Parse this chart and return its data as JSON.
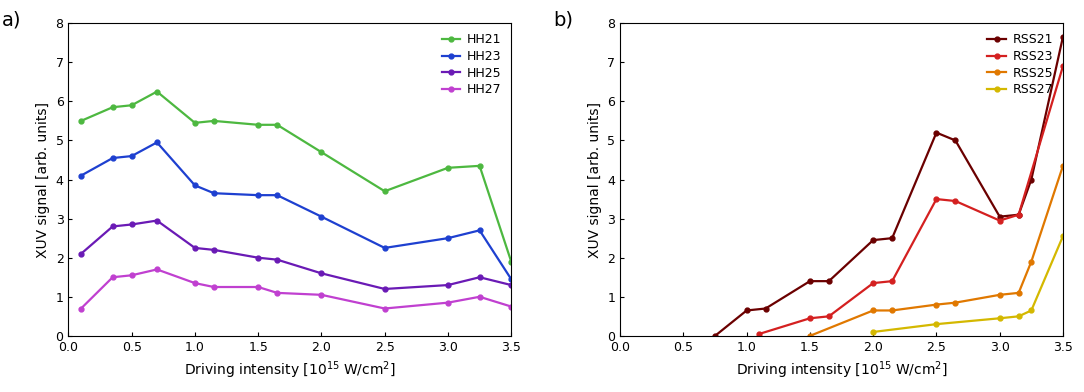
{
  "panel_a": {
    "title_label": "a)",
    "series": [
      {
        "label": "HH21",
        "color": "#4db840",
        "x": [
          0.1,
          0.35,
          0.5,
          0.7,
          1.0,
          1.15,
          1.5,
          1.65,
          2.0,
          2.5,
          3.0,
          3.25,
          3.5
        ],
        "y": [
          5.5,
          5.85,
          5.9,
          6.25,
          5.45,
          5.5,
          5.4,
          5.4,
          4.7,
          3.7,
          4.3,
          4.35,
          1.9
        ]
      },
      {
        "label": "HH23",
        "color": "#1e40d0",
        "x": [
          0.1,
          0.35,
          0.5,
          0.7,
          1.0,
          1.15,
          1.5,
          1.65,
          2.0,
          2.5,
          3.0,
          3.25,
          3.5
        ],
        "y": [
          4.1,
          4.55,
          4.6,
          4.95,
          3.85,
          3.65,
          3.6,
          3.6,
          3.05,
          2.25,
          2.5,
          2.7,
          1.45
        ]
      },
      {
        "label": "HH25",
        "color": "#6a1ab5",
        "x": [
          0.1,
          0.35,
          0.5,
          0.7,
          1.0,
          1.15,
          1.5,
          1.65,
          2.0,
          2.5,
          3.0,
          3.25,
          3.5
        ],
        "y": [
          2.1,
          2.8,
          2.85,
          2.95,
          2.25,
          2.2,
          2.0,
          1.95,
          1.6,
          1.2,
          1.3,
          1.5,
          1.3
        ]
      },
      {
        "label": "HH27",
        "color": "#c040d0",
        "x": [
          0.1,
          0.35,
          0.5,
          0.7,
          1.0,
          1.15,
          1.5,
          1.65,
          2.0,
          2.5,
          3.0,
          3.25,
          3.5
        ],
        "y": [
          0.7,
          1.5,
          1.55,
          1.7,
          1.35,
          1.25,
          1.25,
          1.1,
          1.05,
          0.7,
          0.85,
          1.0,
          0.75
        ]
      }
    ],
    "xlabel": "Driving intensity [$10^{15}$ W/cm$^2$]",
    "ylabel": "XUV signal [arb. units]",
    "xlim": [
      0.0,
      3.5
    ],
    "ylim": [
      0,
      8
    ],
    "xticks": [
      0.0,
      0.5,
      1.0,
      1.5,
      2.0,
      2.5,
      3.0,
      3.5
    ],
    "xtick_labels": [
      "0.0",
      "0.5",
      "1.0",
      "1.5",
      "2.0",
      "2.5",
      "3.0",
      "3.5"
    ],
    "yticks": [
      0,
      1,
      2,
      3,
      4,
      5,
      6,
      7,
      8
    ]
  },
  "panel_b": {
    "title_label": "b)",
    "series": [
      {
        "label": "RSS21",
        "color": "#6b0000",
        "x": [
          0.75,
          1.0,
          1.15,
          1.5,
          1.65,
          2.0,
          2.15,
          2.5,
          2.65,
          3.0,
          3.15,
          3.25,
          3.5
        ],
        "y": [
          0.0,
          0.65,
          0.7,
          1.4,
          1.4,
          2.45,
          2.5,
          5.2,
          5.0,
          3.05,
          3.1,
          4.0,
          7.65
        ]
      },
      {
        "label": "RSS23",
        "color": "#d42020",
        "x": [
          1.1,
          1.5,
          1.65,
          2.0,
          2.15,
          2.5,
          2.65,
          3.0,
          3.15,
          3.5
        ],
        "y": [
          0.05,
          0.45,
          0.5,
          1.35,
          1.4,
          3.5,
          3.45,
          2.95,
          3.1,
          6.9
        ]
      },
      {
        "label": "RSS25",
        "color": "#e07800",
        "x": [
          1.5,
          2.0,
          2.15,
          2.5,
          2.65,
          3.0,
          3.15,
          3.25,
          3.5
        ],
        "y": [
          0.0,
          0.65,
          0.65,
          0.8,
          0.85,
          1.05,
          1.1,
          1.9,
          4.35
        ]
      },
      {
        "label": "RSS27",
        "color": "#d4b800",
        "x": [
          2.0,
          2.5,
          3.0,
          3.15,
          3.25,
          3.5
        ],
        "y": [
          0.1,
          0.3,
          0.45,
          0.5,
          0.65,
          2.55
        ]
      }
    ],
    "xlabel": "Driving intensity [$10^{15}$ W/cm$^2$]",
    "ylabel": "XUV signal [arb. units]",
    "xlim": [
      0.0,
      3.5
    ],
    "ylim": [
      0,
      8
    ],
    "xticks": [
      0.0,
      0.5,
      1.0,
      1.5,
      2.0,
      2.5,
      3.0,
      3.5
    ],
    "xtick_labels": [
      "0.0",
      "0.5",
      "1.0",
      "1.5",
      "2.0",
      "2.5",
      "3.0",
      "3.5"
    ],
    "yticks": [
      0,
      1,
      2,
      3,
      4,
      5,
      6,
      7,
      8
    ]
  },
  "marker": "o",
  "markersize": 3.5,
  "linewidth": 1.6,
  "background_color": "#ffffff",
  "legend_fontsize": 9,
  "axis_label_fontsize": 10,
  "tick_fontsize": 9
}
